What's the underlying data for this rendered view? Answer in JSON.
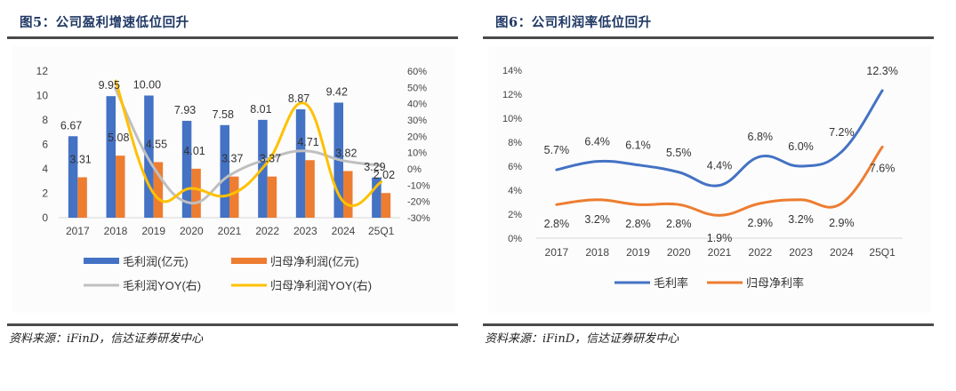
{
  "left_panel": {
    "title": "图5：公司盈利增速低位回升",
    "source": "资料来源：iFinD，信达证券研发中心"
  },
  "right_panel": {
    "title": "图6：公司利润率低位回升",
    "source": "资料来源：iFinD，信达证券研发中心"
  },
  "colors": {
    "blue": "#4472c4",
    "orange": "#ed7d31",
    "gray": "#bfbfbf",
    "yellow": "#ffc000",
    "title": "#1f3864"
  },
  "chart_data": [
    {
      "type": "bar",
      "title": "公司盈利增速低位回升",
      "categories": [
        "2017",
        "2018",
        "2019",
        "2020",
        "2021",
        "2022",
        "2023",
        "2024",
        "25Q1"
      ],
      "ylim": [
        0,
        12
      ],
      "yticks": [
        "0",
        "2",
        "4",
        "6",
        "8",
        "10",
        "12"
      ],
      "y2lim": [
        -30,
        60
      ],
      "y2ticks": [
        "-30%",
        "-20%",
        "-10%",
        "0%",
        "10%",
        "20%",
        "30%",
        "40%",
        "50%",
        "60%"
      ],
      "grid": false,
      "legend_position": "bottom",
      "series": [
        {
          "name": "毛利润(亿元)",
          "kind": "bar",
          "axis": "left",
          "color": "#4472c4",
          "values": [
            6.67,
            9.95,
            10.0,
            7.93,
            7.58,
            8.01,
            8.87,
            9.42,
            3.29
          ],
          "labels": [
            "6.67",
            "9.95",
            "10.00",
            "7.93",
            "7.58",
            "8.01",
            "8.87",
            "9.42",
            "3.29"
          ]
        },
        {
          "name": "归母净利润(亿元)",
          "kind": "bar",
          "axis": "left",
          "color": "#ed7d31",
          "values": [
            3.31,
            5.08,
            4.55,
            4.01,
            3.37,
            3.37,
            4.71,
            3.82,
            2.02
          ],
          "labels": [
            "3.31",
            "5.08",
            "4.55",
            "4.01",
            "3.37",
            "3.37",
            "4.71",
            "3.82",
            "2.02"
          ]
        },
        {
          "name": "毛利润YOY(右)",
          "kind": "line",
          "axis": "right",
          "color": "#bfbfbf",
          "values": [
            null,
            49,
            1,
            -21,
            -4,
            6,
            11,
            5,
            2
          ]
        },
        {
          "name": "归母净利润YOY(右)",
          "kind": "line",
          "axis": "right",
          "color": "#ffc000",
          "values": [
            null,
            54,
            -15,
            -12,
            -16,
            4,
            40,
            -20,
            -8
          ]
        }
      ]
    },
    {
      "type": "line",
      "title": "公司利润率低位回升",
      "categories": [
        "2017",
        "2018",
        "2019",
        "2020",
        "2021",
        "2022",
        "2023",
        "2024",
        "25Q1"
      ],
      "ylim": [
        0,
        14
      ],
      "yticks": [
        "0%",
        "2%",
        "4%",
        "6%",
        "8%",
        "10%",
        "12%",
        "14%"
      ],
      "grid": false,
      "legend_position": "bottom",
      "series": [
        {
          "name": "毛利率",
          "color": "#4472c4",
          "values": [
            5.7,
            6.4,
            6.1,
            5.5,
            4.4,
            6.8,
            6.0,
            7.2,
            12.3
          ],
          "labels": [
            "5.7%",
            "6.4%",
            "6.1%",
            "5.5%",
            "4.4%",
            "6.8%",
            "6.0%",
            "7.2%",
            "12.3%"
          ]
        },
        {
          "name": "归母净利率",
          "color": "#ed7d31",
          "values": [
            2.8,
            3.2,
            2.8,
            2.8,
            1.9,
            2.9,
            3.2,
            2.9,
            7.6
          ],
          "labels": [
            "2.8%",
            "3.2%",
            "2.8%",
            "2.8%",
            "1.9%",
            "2.9%",
            "3.2%",
            "2.9%",
            "7.6%"
          ]
        }
      ]
    }
  ]
}
